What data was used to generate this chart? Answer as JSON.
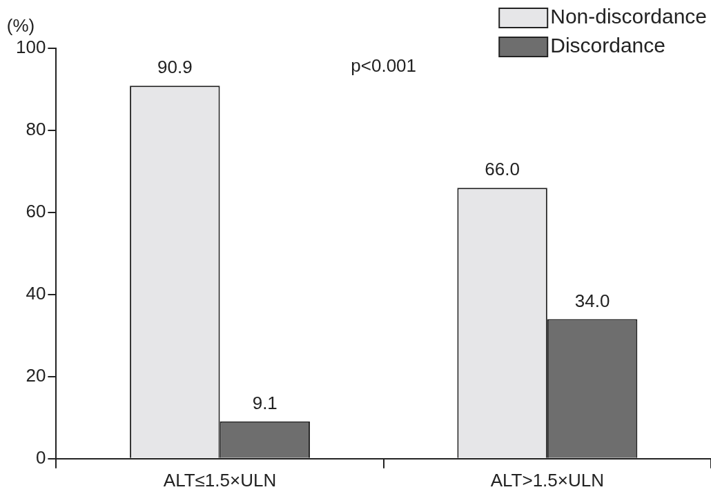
{
  "chart_data": {
    "type": "bar",
    "ylabel": "(%)",
    "categories": [
      "ALT≤1.5×ULN",
      "ALT>1.5×ULN"
    ],
    "series": [
      {
        "name": "Non-discordance",
        "color": "#e6e6e8",
        "values": [
          90.9,
          66.0
        ],
        "value_labels": [
          "90.9",
          "66.0"
        ]
      },
      {
        "name": "Discordance",
        "color": "#6e6e6e",
        "values": [
          9.1,
          34.0
        ],
        "value_labels": [
          "9.1",
          "34.0"
        ]
      }
    ],
    "ylim": [
      0,
      100
    ],
    "yticks": [
      0,
      20,
      40,
      60,
      80,
      100
    ],
    "grid": false,
    "legend": "top right",
    "annotations": [
      "p<0.001"
    ]
  }
}
